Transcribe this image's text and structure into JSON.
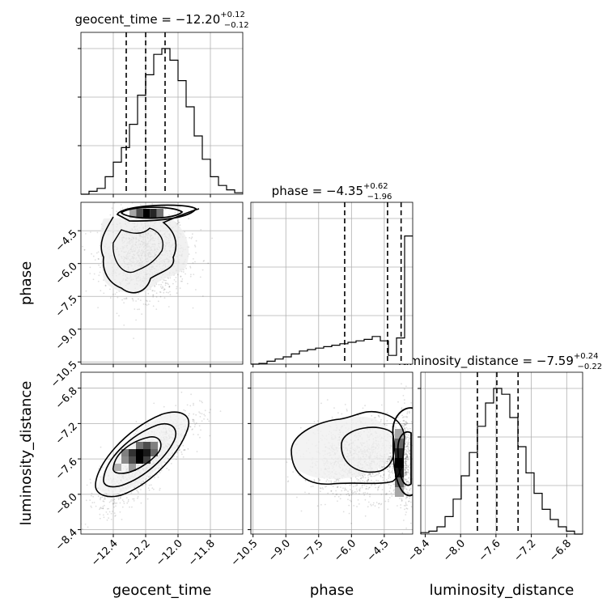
{
  "chart_data": {
    "type": "corner",
    "parameters": [
      "geocent_time",
      "phase",
      "luminosity_distance"
    ],
    "titles": [
      {
        "param": "geocent_time",
        "median": "−12.20",
        "plus": "+0.12",
        "minus": "−0.12"
      },
      {
        "param": "phase",
        "median": "−4.35",
        "plus": "+0.62",
        "minus": "−1.96"
      },
      {
        "param": "luminosity_distance",
        "median": "−7.59",
        "plus": "+0.24",
        "minus": "−0.22"
      }
    ],
    "ranges": {
      "geocent_time": [
        -12.6,
        -11.6
      ],
      "phase": [
        -10.6,
        -3.2
      ],
      "luminosity_distance": [
        -8.45,
        -6.62
      ]
    },
    "ticks": {
      "geocent_time": {
        "values": [
          -12.4,
          -12.2,
          -12.0,
          -11.8
        ],
        "labels": [
          "−12.4",
          "−12.2",
          "−12.0",
          "−11.8"
        ]
      },
      "phase": {
        "values": [
          -10.5,
          -9.0,
          -7.5,
          -6.0,
          -4.5
        ],
        "labels": [
          "−10.5",
          "−9.0",
          "−7.5",
          "−6.0",
          "−4.5"
        ]
      },
      "luminosity_distance": {
        "values": [
          -8.4,
          -8.0,
          -7.6,
          -7.2,
          -6.8
        ],
        "labels": [
          "−8.4",
          "−8.0",
          "−7.6",
          "−7.2",
          "−6.8"
        ]
      }
    },
    "quantiles": {
      "geocent_time": [
        -12.32,
        -12.2,
        -12.08
      ],
      "phase": [
        -6.31,
        -4.35,
        -3.73
      ],
      "luminosity_distance": [
        -7.81,
        -7.59,
        -7.35
      ]
    },
    "histograms": {
      "geocent_time": {
        "edges_start": -12.6,
        "bin_width": 0.05,
        "counts": [
          0.0,
          0.02,
          0.04,
          0.12,
          0.22,
          0.32,
          0.48,
          0.68,
          0.82,
          0.96,
          1.0,
          0.92,
          0.78,
          0.6,
          0.4,
          0.24,
          0.12,
          0.06,
          0.03,
          0.01
        ]
      },
      "phase": {
        "edges_start": -10.6,
        "bin_width": 0.37,
        "counts": [
          0.0,
          0.005,
          0.02,
          0.035,
          0.05,
          0.07,
          0.09,
          0.1,
          0.11,
          0.12,
          0.13,
          0.14,
          0.15,
          0.16,
          0.17,
          0.19,
          0.16,
          0.06,
          0.18,
          0.88
        ]
      },
      "luminosity_distance": {
        "edges_start": -8.45,
        "bin_width": 0.0915,
        "counts": [
          0.01,
          0.02,
          0.05,
          0.12,
          0.24,
          0.4,
          0.56,
          0.74,
          0.9,
          1.0,
          0.96,
          0.8,
          0.6,
          0.42,
          0.28,
          0.17,
          0.1,
          0.05,
          0.02,
          0.0
        ]
      }
    },
    "pairs": [
      {
        "x": "geocent_time",
        "y": "phase",
        "xr": [
          -12.6,
          -11.6
        ],
        "yr": [
          -10.6,
          -3.2
        ],
        "dense": [
          -12.2,
          -3.7
        ],
        "note": "samples concentrated near phase top edge"
      },
      {
        "x": "geocent_time",
        "y": "luminosity_distance",
        "xr": [
          -12.6,
          -11.6
        ],
        "yr": [
          -8.45,
          -6.62
        ],
        "dense": [
          -12.2,
          -7.6
        ],
        "note": "positively correlated"
      },
      {
        "x": "phase",
        "y": "luminosity_distance",
        "xr": [
          -10.6,
          -3.2
        ],
        "yr": [
          -8.45,
          -6.62
        ],
        "dense": [
          -3.5,
          -7.6
        ],
        "note": "dense strip at right edge"
      }
    ],
    "grid": true
  }
}
